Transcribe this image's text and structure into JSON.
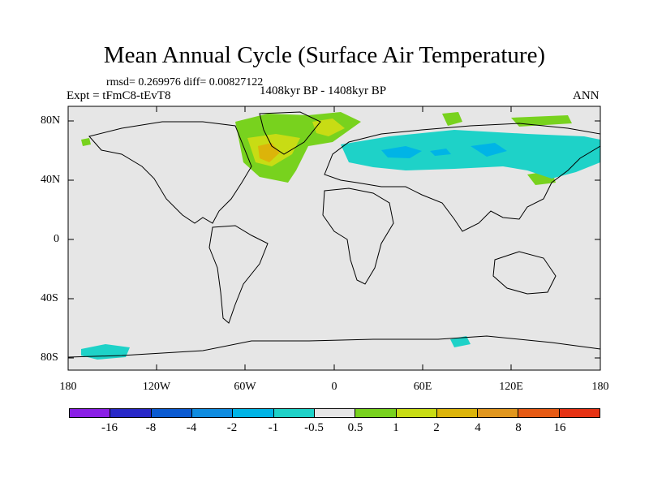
{
  "title": "Mean Annual Cycle (Surface Air Temperature)",
  "stats": "rmsd= 0.269976 diff= 0.00827122",
  "experiment": "Expt = tFmC8-tEvT8",
  "period": "1408kyr BP - 1408kyr BP",
  "season": "ANN",
  "lat_labels": [
    "80N",
    "40N",
    "0",
    "40S",
    "80S"
  ],
  "lon_labels": [
    "180",
    "120W",
    "60W",
    "0",
    "60E",
    "120E",
    "180"
  ],
  "colorbar": {
    "labels": [
      "-16",
      "-8",
      "-4",
      "-2",
      "-1",
      "-0.5",
      "0.5",
      "1",
      "2",
      "4",
      "8",
      "16"
    ],
    "colors": [
      "#8a1ee6",
      "#2828c8",
      "#0a5ad2",
      "#0f8ce1",
      "#00b4e6",
      "#1ed2c8",
      "#e6e6e6",
      "#78d21e",
      "#c8dc14",
      "#dcb40a",
      "#e1961e",
      "#e65a14",
      "#e63214"
    ]
  },
  "map": {
    "background": "#e6e6e6",
    "coastline_color": "#000000"
  }
}
